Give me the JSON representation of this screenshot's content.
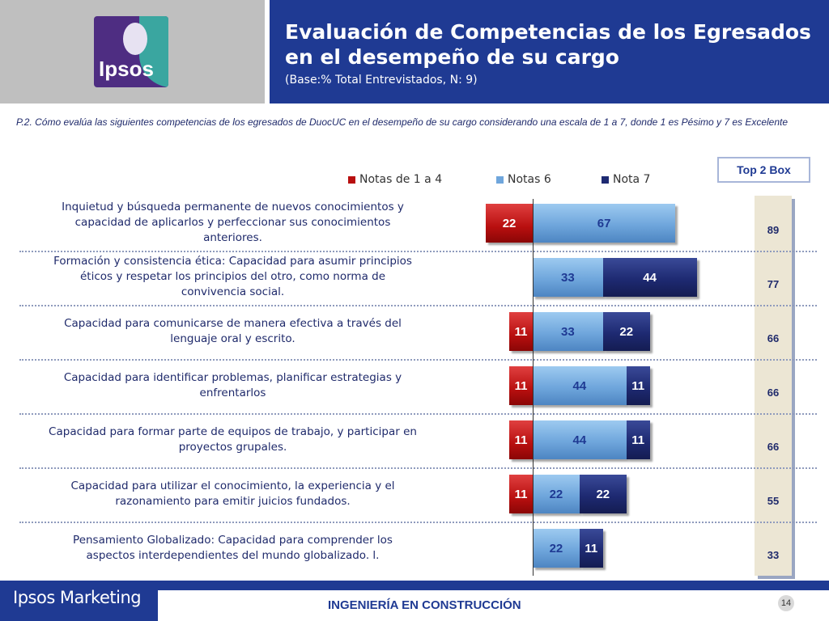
{
  "header": {
    "logo_text": "Ipsos",
    "title_line1": "Evaluación de Competencias de los Egresados",
    "title_line2": "en el desempeño de su cargo",
    "subtitle": "(Base:% Total Entrevistados, N: 9)"
  },
  "question": "P.2. Cómo evalúa las siguientes competencias de los egresados de DuocUC en el desempeño de su cargo  considerando una escala de 1 a 7,  donde 1 es Pésimo y 7 es Excelente",
  "top2box_label": "Top 2 Box",
  "footer": {
    "brand": "Ipsos Marketing",
    "center": "INGENIERÍA EN CONSTRUCCIÓN",
    "page": "14"
  },
  "colors": {
    "navy": "#1f3a93",
    "red": "#b80f0f",
    "light_blue": "#6fa6dc",
    "dark_navy": "#1e2a72"
  },
  "chart_data": {
    "type": "bar",
    "orientation": "horizontal-stacked-diverging",
    "legend": [
      "Notas de 1 a 4",
      "Notas 6",
      "Nota 7"
    ],
    "categories": [
      "Inquietud y búsqueda permanente de nuevos conocimientos y capacidad de aplicarlos y perfeccionar sus conocimientos anteriores.",
      "Formación y consistencia ética: Capacidad para asumir principios éticos y respetar los principios del otro, como norma de convivencia social.",
      "Capacidad para comunicarse de manera efectiva a través del lenguaje oral y escrito.",
      "Capacidad para identificar problemas, planificar estrategias y enfrentarlos",
      "Capacidad para formar parte de equipos de trabajo, y participar en proyectos grupales.",
      "Capacidad para utilizar el conocimiento, la experiencia y el razonamiento para emitir juicios fundados.",
      "Pensamiento Globalizado: Capacidad para comprender los aspectos interdependientes del mundo globalizado. l."
    ],
    "series": [
      {
        "name": "Notas de 1 a 4",
        "values": [
          22,
          null,
          11,
          11,
          11,
          11,
          null
        ]
      },
      {
        "name": "Notas 6",
        "values": [
          67,
          33,
          33,
          44,
          44,
          22,
          22
        ]
      },
      {
        "name": "Nota 7",
        "values": [
          null,
          44,
          22,
          11,
          11,
          22,
          11
        ]
      }
    ],
    "top2box": [
      89,
      77,
      66,
      66,
      66,
      55,
      33
    ]
  }
}
